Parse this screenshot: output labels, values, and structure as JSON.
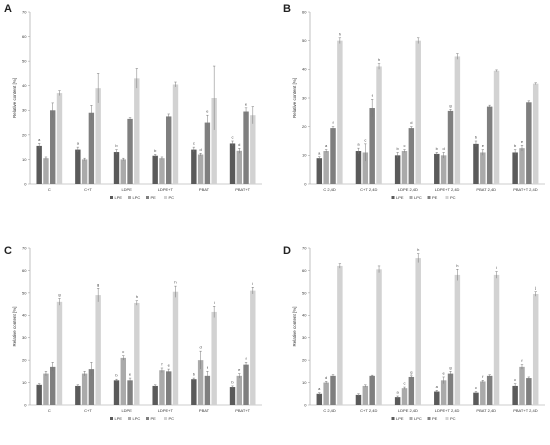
{
  "chart_data": [
    {
      "panel": "A",
      "type": "bar",
      "ylabel": "Relative content [%]",
      "ylim": [
        0,
        70
      ],
      "yticks": [
        0,
        10,
        20,
        30,
        40,
        50,
        60,
        70
      ],
      "categories": [
        "C",
        "C+T",
        "LDPE",
        "LDPE+T",
        "PBAT",
        "PBAT+T"
      ],
      "series": [
        {
          "name": "LPE",
          "values": [
            15.5,
            14,
            13,
            11.5,
            14,
            16.5
          ],
          "errors": [
            1,
            1,
            1,
            0.5,
            1,
            1
          ],
          "sig": [
            "a",
            "a",
            "b",
            "b",
            "c",
            "c"
          ]
        },
        {
          "name": "LPC",
          "values": [
            10.5,
            10,
            10,
            10.5,
            12,
            13.5
          ],
          "errors": [
            0.5,
            0.5,
            0.5,
            0.5,
            0.5,
            1
          ],
          "sig": [
            "",
            "",
            "",
            "",
            "d",
            "d"
          ]
        },
        {
          "name": "PE",
          "values": [
            30,
            29,
            26.5,
            27.5,
            25,
            29.5
          ],
          "errors": [
            3,
            3,
            0.5,
            1,
            3,
            1.5
          ],
          "sig": [
            "",
            "",
            "",
            "",
            "e",
            "e"
          ]
        },
        {
          "name": "PC",
          "values": [
            37,
            39,
            43,
            40.5,
            35,
            28
          ],
          "errors": [
            1,
            6,
            4,
            1,
            13,
            3.5
          ],
          "sig": [
            "",
            "",
            "",
            "",
            "",
            ""
          ]
        }
      ]
    },
    {
      "panel": "B",
      "type": "bar",
      "ylabel": "Relative content [%]",
      "ylim": [
        0,
        60
      ],
      "yticks": [
        0,
        10,
        20,
        30,
        40,
        50,
        60
      ],
      "categories": [
        "C 2,4D",
        "C+T 2,4D",
        "LDPE 2,4D",
        "LDPE+T 2,4D",
        "PBAT 2,4D",
        "PBAT+T 2,4D"
      ],
      "series": [
        {
          "name": "LPE",
          "values": [
            9,
            11.5,
            10,
            10.5,
            14,
            11
          ],
          "errors": [
            0.5,
            1,
            1,
            0.5,
            1,
            1
          ],
          "sig": [
            "a",
            "a",
            "b",
            "b",
            "b",
            "b"
          ]
        },
        {
          "name": "LPC",
          "values": [
            11.5,
            11,
            11.5,
            10,
            11,
            12.5
          ],
          "errors": [
            0.5,
            3,
            0.5,
            1,
            1,
            1
          ],
          "sig": [
            "a",
            "c",
            "c",
            "d",
            "e",
            "e"
          ]
        },
        {
          "name": "PE",
          "values": [
            19.5,
            26.5,
            19.5,
            25.5,
            27,
            28.5
          ],
          "errors": [
            0.5,
            3,
            0.5,
            0.5,
            0.5,
            0.5
          ],
          "sig": [
            "f",
            "f",
            "d",
            "g",
            "",
            ""
          ]
        },
        {
          "name": "PC",
          "values": [
            50,
            41,
            50,
            44.5,
            39.5,
            35
          ],
          "errors": [
            1,
            1,
            1,
            1,
            0.3,
            0.3
          ],
          "sig": [
            "h",
            "h",
            "",
            "",
            "",
            ""
          ]
        }
      ]
    },
    {
      "panel": "C",
      "type": "bar",
      "ylabel": "Relative content [%]",
      "ylim": [
        0,
        70
      ],
      "yticks": [
        0,
        10,
        20,
        30,
        40,
        50,
        60,
        70
      ],
      "categories": [
        "C",
        "C+T",
        "LDPE",
        "LDPE+T",
        "PBAT",
        "PBAT+T"
      ],
      "series": [
        {
          "name": "LPE",
          "values": [
            9,
            8.5,
            11,
            8.5,
            11.5,
            8
          ],
          "errors": [
            0.5,
            0.5,
            0.5,
            0.5,
            0.5,
            0.5
          ],
          "sig": [
            "",
            "",
            "b",
            "",
            "b",
            "b"
          ]
        },
        {
          "name": "LPC",
          "values": [
            14,
            14,
            21,
            15.5,
            20,
            13
          ],
          "errors": [
            1,
            1,
            1,
            1,
            4,
            1
          ],
          "sig": [
            "",
            "",
            "c",
            "f",
            "d",
            "e"
          ]
        },
        {
          "name": "PE",
          "values": [
            17,
            16,
            11,
            15,
            13,
            18
          ],
          "errors": [
            2,
            3,
            1,
            1,
            2,
            1
          ],
          "sig": [
            "",
            "",
            "e",
            "e",
            "f",
            "f"
          ]
        },
        {
          "name": "PC",
          "values": [
            46,
            49,
            45.5,
            50.5,
            41.5,
            51
          ],
          "errors": [
            1.5,
            3,
            1,
            2.5,
            2.5,
            1.5
          ],
          "sig": [
            "g",
            "g",
            "h",
            "h",
            "i",
            "i"
          ]
        }
      ]
    },
    {
      "panel": "D",
      "type": "bar",
      "ylabel": "Relative content [%]",
      "ylim": [
        0,
        70
      ],
      "yticks": [
        0,
        10,
        20,
        30,
        40,
        50,
        60,
        70
      ],
      "categories": [
        "C 2,4D",
        "C+T 2,4D",
        "LDPE 2,4D",
        "LDPE+T 2,4D",
        "PBAT 2,4D",
        "PBAT+T 2,4D"
      ],
      "series": [
        {
          "name": "LPE",
          "values": [
            5,
            4.5,
            3.5,
            6,
            5.5,
            8.5
          ],
          "errors": [
            0.5,
            0.5,
            0.5,
            0.5,
            0.5,
            1
          ],
          "sig": [
            "a",
            "",
            "a",
            "a",
            "c",
            "c"
          ]
        },
        {
          "name": "LPC",
          "values": [
            10,
            8.5,
            7.5,
            11,
            10.5,
            17
          ],
          "errors": [
            0.5,
            0.5,
            0.5,
            1.5,
            0.5,
            1
          ],
          "sig": [
            "d",
            "",
            "c",
            "e",
            "f",
            "f"
          ]
        },
        {
          "name": "PE",
          "values": [
            13,
            13,
            12.5,
            14,
            13,
            12
          ],
          "errors": [
            0.5,
            0.3,
            0.5,
            1,
            0.5,
            0.5
          ],
          "sig": [
            "",
            "",
            "g",
            "g",
            "",
            ""
          ]
        },
        {
          "name": "PC",
          "values": [
            62,
            60.5,
            65.5,
            58,
            58,
            49.5
          ],
          "errors": [
            1,
            1.5,
            2,
            2.5,
            1.5,
            1
          ],
          "sig": [
            "",
            "",
            "h",
            "h",
            "i",
            "j"
          ]
        }
      ]
    }
  ],
  "series_colors": [
    "#5a5a5a",
    "#aaaaaa",
    "#7f7f7f",
    "#d2d2d2"
  ],
  "legend": [
    "LPE",
    "LPC",
    "PE",
    "PC"
  ],
  "legend_placement": "bottom-center"
}
